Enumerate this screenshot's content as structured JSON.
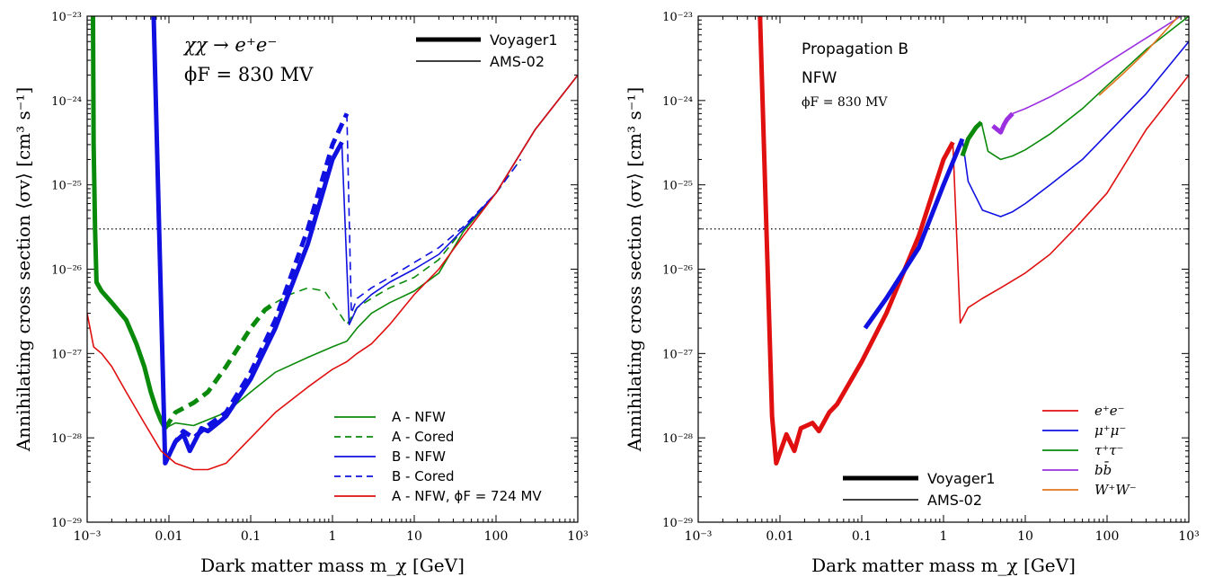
{
  "chart_data": [
    {
      "type": "line",
      "ylabel": "Annihilating cross section ⟨σv⟩ [cm³ s⁻¹]",
      "xlabel": "Dark matter mass m_χ [GeV]",
      "xscale": "log",
      "yscale": "log",
      "xlim": [
        0.001,
        1000
      ],
      "ylim": [
        1e-29,
        1e-23
      ],
      "x_ticks": [
        0.001,
        0.01,
        0.1,
        1,
        10,
        100,
        1000
      ],
      "x_tick_labels": [
        "10⁻³",
        "0.01",
        "0.1",
        "1",
        "10",
        "100",
        "10³"
      ],
      "y_ticks": [
        1e-29,
        1e-28,
        1e-27,
        1e-26,
        1e-25,
        1e-24,
        1e-23
      ],
      "y_tick_labels": [
        "10⁻²⁹",
        "10⁻²⁸",
        "10⁻²⁷",
        "10⁻²⁶",
        "10⁻²⁵",
        "10⁻²⁴",
        "10⁻²³"
      ],
      "reference_line": 3e-26,
      "annotations": [
        "χχ → e⁺e⁻",
        "ϕF = 830 MV"
      ],
      "style_legend": [
        {
          "label": "Voyager1",
          "width": 5
        },
        {
          "label": "AMS-02",
          "width": 1.6
        }
      ],
      "legend": [
        {
          "label": "A - NFW",
          "color": "#0a8a0a",
          "dash": false
        },
        {
          "label": "A - Cored",
          "color": "#0a8a0a",
          "dash": true
        },
        {
          "label": "B - NFW",
          "color": "#1010e0",
          "dash": false
        },
        {
          "label": "B - Cored",
          "color": "#1010e0",
          "dash": true
        },
        {
          "label": "A - NFW, ϕF = 724 MV",
          "color": "#e01010",
          "dash": false
        }
      ],
      "series": [
        {
          "name": "A - NFW",
          "color": "#0a8a0a",
          "width": 5,
          "dash": false,
          "x": [
            0.00118,
            0.0012,
            0.00125,
            0.0013,
            0.0015,
            0.002,
            0.003,
            0.004,
            0.005,
            0.006,
            0.007,
            0.008,
            0.009
          ],
          "y": [
            1e-23,
            3e-25,
            3e-26,
            7e-27,
            5.5e-27,
            4e-27,
            2.5e-27,
            1.3e-27,
            7e-28,
            3.5e-28,
            2.2e-28,
            1.6e-28,
            1.3e-28
          ]
        },
        {
          "name": "A - NFW",
          "color": "#0a8a0a",
          "width": 1.6,
          "dash": false,
          "x": [
            0.009,
            0.012,
            0.02,
            0.05,
            0.1,
            0.2,
            0.5,
            1,
            1.5,
            2,
            3,
            5,
            10,
            20,
            40,
            100,
            300,
            1000
          ],
          "y": [
            1.3e-28,
            1.5e-28,
            1.4e-28,
            2e-28,
            3.5e-28,
            6e-28,
            9e-28,
            1.2e-27,
            1.4e-27,
            2e-27,
            3e-27,
            4e-27,
            5.5e-27,
            9e-27,
            2.8e-26,
            8e-26,
            4.5e-25,
            2e-24
          ]
        },
        {
          "name": "A - Cored",
          "color": "#0a8a0a",
          "width": 5,
          "dash": true,
          "x": [
            0.009,
            0.012,
            0.02,
            0.03,
            0.05,
            0.1,
            0.15,
            0.2
          ],
          "y": [
            1.3e-28,
            2e-28,
            2.6e-28,
            3.5e-28,
            7e-28,
            2e-27,
            3.3e-27,
            4e-27
          ]
        },
        {
          "name": "A - Cored",
          "color": "#0a8a0a",
          "width": 1.6,
          "dash": true,
          "x": [
            0.2,
            0.3,
            0.5,
            0.8,
            1,
            1.5,
            2,
            3,
            5,
            10,
            20,
            40,
            100,
            200
          ],
          "y": [
            4e-27,
            5e-27,
            6e-27,
            5.5e-27,
            4e-27,
            2.2e-27,
            3.5e-27,
            4.5e-27,
            6e-27,
            8e-27,
            1.3e-26,
            3e-26,
            8e-26,
            2e-25
          ]
        },
        {
          "name": "B - NFW",
          "color": "#1010e0",
          "width": 5,
          "dash": false,
          "x": [
            0.0065,
            0.009,
            0.012,
            0.015,
            0.018,
            0.025,
            0.03,
            0.04,
            0.05,
            0.1,
            0.2,
            0.5,
            1,
            1.3
          ],
          "y": [
            1e-23,
            5e-29,
            9e-29,
            1.1e-28,
            7e-29,
            1.3e-28,
            1.2e-28,
            1.5e-28,
            1.8e-28,
            5e-28,
            2e-27,
            2e-26,
            2e-25,
            3.2e-25
          ]
        },
        {
          "name": "B - NFW",
          "color": "#1010e0",
          "width": 1.6,
          "dash": false,
          "x": [
            1.3,
            1.6,
            2,
            3,
            5,
            10,
            20,
            40,
            100,
            300,
            1000
          ],
          "y": [
            3.2e-25,
            2.2e-27,
            3.5e-27,
            5e-27,
            7e-27,
            1e-26,
            1.5e-26,
            3e-26,
            8e-26,
            4.5e-25,
            2e-24
          ]
        },
        {
          "name": "B - Cored",
          "color": "#1010e0",
          "width": 5,
          "dash": true,
          "x": [
            0.009,
            0.012,
            0.015,
            0.02,
            0.03,
            0.05,
            0.1,
            0.2,
            0.5,
            1,
            1.5
          ],
          "y": [
            5e-29,
            9e-29,
            1.2e-28,
            1e-28,
            1.4e-28,
            2e-28,
            6e-28,
            2.5e-27,
            3e-26,
            3e-25,
            7e-25
          ]
        },
        {
          "name": "B - Cored",
          "color": "#1010e0",
          "width": 1.6,
          "dash": true,
          "x": [
            1.5,
            1.7,
            2,
            3,
            5,
            10,
            20,
            40,
            100,
            200
          ],
          "y": [
            7e-25,
            3e-27,
            4.5e-27,
            6e-27,
            8e-27,
            1.2e-26,
            1.8e-26,
            3.2e-26,
            8e-26,
            2e-25
          ]
        },
        {
          "name": "A - NFW, ϕF = 724 MV",
          "color": "#e01010",
          "width": 1.6,
          "dash": false,
          "x": [
            0.001,
            0.0012,
            0.0015,
            0.002,
            0.003,
            0.005,
            0.008,
            0.012,
            0.02,
            0.03,
            0.05,
            0.1,
            0.2,
            0.5,
            1,
            1.5,
            2,
            3,
            5,
            10,
            20,
            40,
            100,
            300,
            1000
          ],
          "y": [
            3e-27,
            1.2e-27,
            1e-27,
            7e-28,
            3.5e-28,
            1.5e-28,
            7e-29,
            5e-29,
            4.2e-29,
            4.2e-29,
            5e-29,
            1e-28,
            2e-28,
            4e-28,
            6.5e-28,
            8e-28,
            1e-27,
            1.3e-27,
            2.2e-27,
            5e-27,
            1e-26,
            2.5e-26,
            8e-26,
            4.5e-25,
            2e-24
          ]
        }
      ]
    },
    {
      "type": "line",
      "ylabel": "Annihilating cross section ⟨σv⟩ [cm³ s⁻¹]",
      "xlabel": "Dark matter mass m_χ [GeV]",
      "xscale": "log",
      "yscale": "log",
      "xlim": [
        0.001,
        1000
      ],
      "ylim": [
        1e-29,
        1e-23
      ],
      "x_ticks": [
        0.001,
        0.01,
        0.1,
        1,
        10,
        100,
        1000
      ],
      "x_tick_labels": [
        "10⁻³",
        "0.01",
        "0.1",
        "1",
        "10",
        "100",
        "10³"
      ],
      "y_ticks": [
        1e-29,
        1e-28,
        1e-27,
        1e-26,
        1e-25,
        1e-24,
        1e-23
      ],
      "y_tick_labels": [
        "10⁻²⁹",
        "10⁻²⁸",
        "10⁻²⁷",
        "10⁻²⁶",
        "10⁻²⁵",
        "10⁻²⁴",
        "10⁻²³"
      ],
      "reference_line": 3e-26,
      "annotations": [
        "Propagation B",
        "NFW",
        "ϕF = 830 MV"
      ],
      "style_legend": [
        {
          "label": "Voyager1",
          "width": 5
        },
        {
          "label": "AMS-02",
          "width": 1.6
        }
      ],
      "legend": [
        {
          "label": "e⁺e⁻",
          "color": "#e01010"
        },
        {
          "label": "μ⁺μ⁻",
          "color": "#1010e0"
        },
        {
          "label": "τ⁺τ⁻",
          "color": "#0a8a0a"
        },
        {
          "label": "bb̄",
          "color": "#9b30e0"
        },
        {
          "label": "W⁺W⁻",
          "color": "#e0761e"
        }
      ],
      "series": [
        {
          "name": "e⁺e⁻",
          "color": "#e01010",
          "width": 5,
          "x": [
            0.0057,
            0.008,
            0.009,
            0.012,
            0.015,
            0.018,
            0.025,
            0.03,
            0.04,
            0.05,
            0.1,
            0.2,
            0.5,
            1,
            1.3
          ],
          "y": [
            1e-23,
            1.8e-28,
            5e-29,
            1.1e-28,
            7e-29,
            1.3e-28,
            1.5e-28,
            1.2e-28,
            2e-28,
            2.5e-28,
            8e-28,
            3e-27,
            2.5e-26,
            2e-25,
            3.2e-25
          ]
        },
        {
          "name": "e⁺e⁻",
          "color": "#e01010",
          "width": 1.6,
          "x": [
            1.3,
            1.6,
            2,
            3,
            5,
            10,
            20,
            40,
            100,
            300,
            1000
          ],
          "y": [
            3.2e-25,
            2.3e-27,
            3.5e-27,
            4.5e-27,
            6e-27,
            9e-27,
            1.5e-26,
            3e-26,
            8e-26,
            4.5e-25,
            2e-24
          ]
        },
        {
          "name": "μ⁺μ⁻",
          "color": "#1010e0",
          "width": 5,
          "x": [
            0.11,
            0.2,
            0.5,
            1,
            1.7
          ],
          "y": [
            2e-27,
            4.5e-27,
            1.8e-26,
            1e-25,
            3.5e-25
          ]
        },
        {
          "name": "μ⁺μ⁻",
          "color": "#1010e0",
          "width": 1.6,
          "x": [
            1.7,
            2,
            3,
            5,
            7,
            10,
            20,
            50,
            100,
            300,
            1000
          ],
          "y": [
            3.5e-25,
            1.1e-25,
            5e-26,
            4.2e-26,
            4.8e-26,
            6e-26,
            1e-25,
            2e-25,
            4e-25,
            1.2e-24,
            5e-24
          ]
        },
        {
          "name": "τ⁺τ⁻",
          "color": "#0a8a0a",
          "width": 5,
          "x": [
            1.7,
            2,
            2.5,
            2.9
          ],
          "y": [
            2.2e-25,
            3.5e-25,
            4.8e-25,
            5.5e-25
          ]
        },
        {
          "name": "τ⁺τ⁻",
          "color": "#0a8a0a",
          "width": 1.6,
          "x": [
            2.9,
            3.5,
            5,
            7,
            10,
            20,
            50,
            100,
            300,
            1000
          ],
          "y": [
            5.5e-25,
            2.5e-25,
            2e-25,
            2.2e-25,
            2.6e-25,
            4e-25,
            8e-25,
            1.5e-24,
            4e-24,
            1e-23
          ]
        },
        {
          "name": "bb̄",
          "color": "#9b30e0",
          "width": 5,
          "x": [
            4,
            5,
            5.5,
            6,
            7
          ],
          "y": [
            5e-25,
            4.2e-25,
            5.2e-25,
            6e-25,
            7e-25
          ]
        },
        {
          "name": "bb̄",
          "color": "#9b30e0",
          "width": 1.6,
          "x": [
            7,
            10,
            20,
            50,
            100,
            300,
            800
          ],
          "y": [
            7e-25,
            8e-25,
            1.1e-24,
            1.8e-24,
            2.8e-24,
            5.5e-24,
            1e-23
          ]
        },
        {
          "name": "W⁺W⁻",
          "color": "#e0761e",
          "width": 1.6,
          "x": [
            80,
            100,
            150,
            200,
            300,
            500,
            750
          ],
          "y": [
            1.15e-24,
            1.4e-24,
            2e-24,
            2.6e-24,
            3.8e-24,
            6.5e-24,
            1e-23
          ]
        }
      ]
    }
  ]
}
